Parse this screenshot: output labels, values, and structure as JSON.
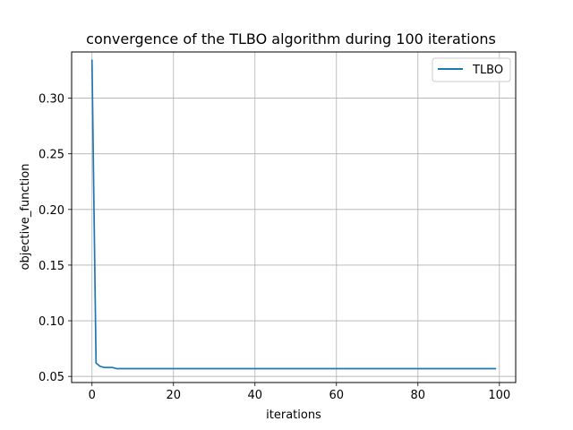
{
  "chart_data": {
    "type": "line",
    "title": "convergence of the TLBO algorithm during 100 iterations",
    "xlabel": "iterations",
    "ylabel": "objective_function",
    "xlim": [
      -5,
      104
    ],
    "ylim": [
      0.0445,
      0.3415
    ],
    "xticks": [
      0,
      20,
      40,
      60,
      80,
      100
    ],
    "yticks": [
      0.05,
      0.1,
      0.15,
      0.2,
      0.25,
      0.3
    ],
    "xtick_labels": [
      "0",
      "20",
      "40",
      "60",
      "80",
      "100"
    ],
    "ytick_labels": [
      "0.05",
      "0.10",
      "0.15",
      "0.20",
      "0.25",
      "0.30"
    ],
    "grid": true,
    "legend_position": "top-right",
    "series": [
      {
        "name": "TLBO",
        "color": "#1f77b4",
        "x": [
          0,
          1,
          2,
          3,
          4,
          5,
          6,
          99
        ],
        "y": [
          0.334,
          0.062,
          0.059,
          0.058,
          0.058,
          0.058,
          0.057,
          0.057
        ]
      }
    ]
  }
}
